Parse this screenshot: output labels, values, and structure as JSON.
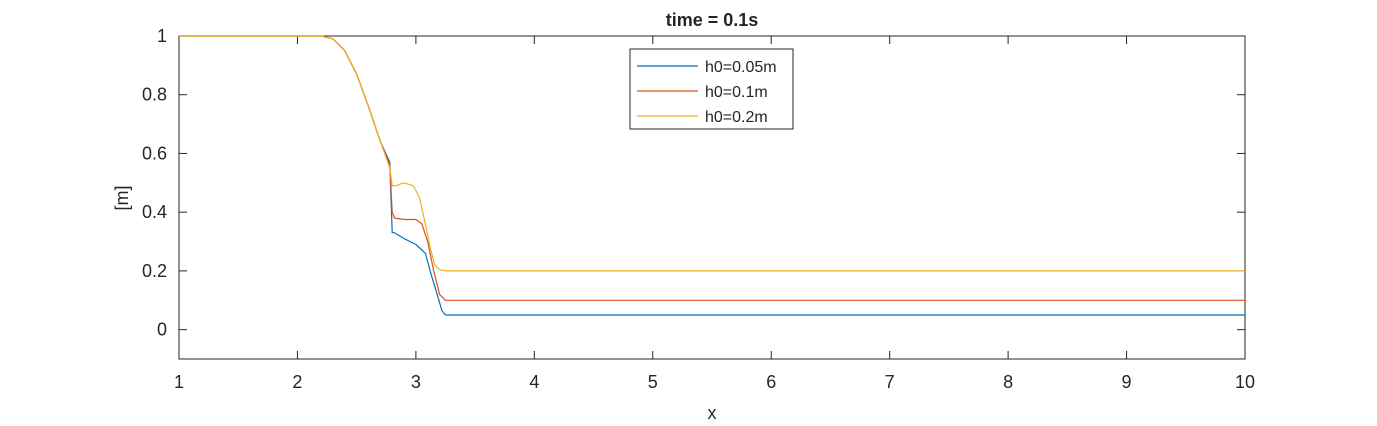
{
  "chart_data": {
    "type": "line",
    "title": "time = 0.1s",
    "xlabel": "x",
    "ylabel": "[m]",
    "xlim": [
      1,
      10
    ],
    "ylim": [
      -0.1,
      1
    ],
    "xticks": [
      1,
      2,
      3,
      4,
      5,
      6,
      7,
      8,
      9,
      10
    ],
    "yticks": [
      0,
      0.2,
      0.4,
      0.6,
      0.8,
      1
    ],
    "ytick_labels": [
      "0",
      "0.2",
      "0.4",
      "0.6",
      "0.8",
      "1"
    ],
    "grid": false,
    "legend_position": "top-center",
    "series": [
      {
        "name": "h0=0.05m",
        "color": "#0072BD",
        "x": [
          1,
          2.0,
          2.2,
          2.3,
          2.4,
          2.5,
          2.6,
          2.7,
          2.78,
          2.8,
          2.82,
          2.9,
          3.0,
          3.08,
          3.12,
          3.18,
          3.22,
          3.25,
          3.3,
          3.5,
          10
        ],
        "y": [
          1,
          1,
          1,
          0.99,
          0.95,
          0.87,
          0.76,
          0.64,
          0.57,
          0.33,
          0.33,
          0.31,
          0.29,
          0.26,
          0.2,
          0.12,
          0.065,
          0.05,
          0.05,
          0.05,
          0.05
        ]
      },
      {
        "name": "h0=0.1m",
        "color": "#D95319",
        "x": [
          1,
          2.0,
          2.2,
          2.3,
          2.4,
          2.5,
          2.6,
          2.7,
          2.78,
          2.8,
          2.82,
          2.9,
          3.0,
          3.05,
          3.1,
          3.15,
          3.2,
          3.25,
          3.3,
          3.5,
          10
        ],
        "y": [
          1,
          1,
          1,
          0.99,
          0.95,
          0.87,
          0.76,
          0.64,
          0.56,
          0.4,
          0.38,
          0.375,
          0.375,
          0.36,
          0.3,
          0.2,
          0.12,
          0.1,
          0.1,
          0.1,
          0.1
        ]
      },
      {
        "name": "h0=0.2m",
        "color": "#EDB120",
        "x": [
          1,
          2.0,
          2.2,
          2.3,
          2.4,
          2.5,
          2.6,
          2.7,
          2.78,
          2.8,
          2.83,
          2.9,
          2.98,
          3.03,
          3.08,
          3.12,
          3.16,
          3.2,
          3.25,
          3.5,
          10
        ],
        "y": [
          1,
          1,
          1,
          0.99,
          0.95,
          0.87,
          0.76,
          0.64,
          0.55,
          0.49,
          0.49,
          0.5,
          0.49,
          0.45,
          0.36,
          0.28,
          0.22,
          0.205,
          0.2,
          0.2,
          0.2
        ]
      }
    ]
  }
}
